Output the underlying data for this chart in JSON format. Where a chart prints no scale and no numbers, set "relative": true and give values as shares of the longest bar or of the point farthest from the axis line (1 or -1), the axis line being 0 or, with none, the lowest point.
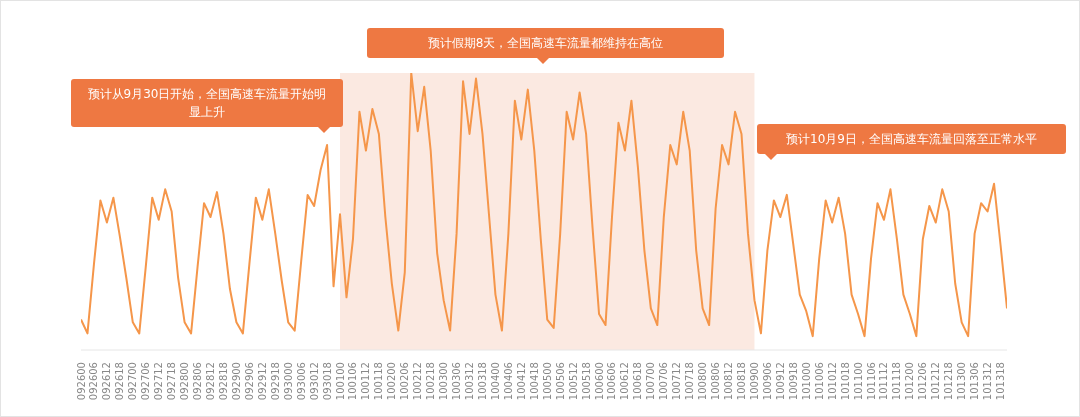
{
  "chart_data": {
    "type": "line",
    "relative": true,
    "tick_labels": "x",
    "color": "#f5964a",
    "categories": [
      "092600",
      null,
      "092606",
      null,
      "092612",
      null,
      "092618",
      null,
      "092700",
      null,
      "092706",
      null,
      "092712",
      null,
      "092718",
      null,
      "092800",
      null,
      "092806",
      null,
      "092812",
      null,
      "092818",
      null,
      "092900",
      null,
      "092906",
      null,
      "092912",
      null,
      "092918",
      null,
      "093000",
      null,
      "093006",
      null,
      "093012",
      null,
      "093018",
      null,
      "100100",
      null,
      "100106",
      null,
      "100112",
      null,
      "100118",
      null,
      "100200",
      null,
      "100206",
      null,
      "100212",
      null,
      "100218",
      null,
      "100300",
      null,
      "100306",
      null,
      "100312",
      null,
      "100318",
      null,
      "100400",
      null,
      "100406",
      null,
      "100412",
      null,
      "100418",
      null,
      "100500",
      null,
      "100506",
      null,
      "100512",
      null,
      "100518",
      null,
      "100600",
      null,
      "100606",
      null,
      "100612",
      null,
      "100618",
      null,
      "100700",
      null,
      "100706",
      null,
      "100712",
      null,
      "100718",
      null,
      "100800",
      null,
      "100806",
      null,
      "100812",
      null,
      "100818",
      null,
      "100900",
      null,
      "100906",
      null,
      "100912",
      null,
      "100918",
      null,
      "101000",
      null,
      "101006",
      null,
      "101012",
      null,
      "101018",
      null,
      "101100",
      null,
      "101106",
      null,
      "101112",
      null,
      "101118",
      null,
      "101200",
      null,
      "101206",
      null,
      "101212",
      null,
      "101218",
      null,
      "101300",
      null,
      "101306",
      null,
      "101312",
      null,
      "101318",
      null
    ],
    "values": [
      0.11,
      0.06,
      0.31,
      0.54,
      0.46,
      0.55,
      0.41,
      0.26,
      0.1,
      0.06,
      0.3,
      0.55,
      0.47,
      0.58,
      0.5,
      0.26,
      0.1,
      0.06,
      0.3,
      0.53,
      0.48,
      0.57,
      0.42,
      0.22,
      0.1,
      0.06,
      0.31,
      0.55,
      0.47,
      0.58,
      0.42,
      0.25,
      0.1,
      0.07,
      0.32,
      0.56,
      0.52,
      0.65,
      0.74,
      0.23,
      0.49,
      0.19,
      0.4,
      0.86,
      0.72,
      0.87,
      0.78,
      0.48,
      0.24,
      0.07,
      0.28,
      1.0,
      0.79,
      0.95,
      0.72,
      0.35,
      0.18,
      0.07,
      0.42,
      0.97,
      0.78,
      0.98,
      0.78,
      0.49,
      0.2,
      0.07,
      0.42,
      0.9,
      0.76,
      0.94,
      0.72,
      0.4,
      0.11,
      0.08,
      0.42,
      0.86,
      0.76,
      0.93,
      0.78,
      0.44,
      0.13,
      0.09,
      0.48,
      0.82,
      0.72,
      0.9,
      0.66,
      0.36,
      0.15,
      0.09,
      0.48,
      0.74,
      0.67,
      0.86,
      0.72,
      0.36,
      0.15,
      0.09,
      0.51,
      0.74,
      0.67,
      0.86,
      0.78,
      0.42,
      0.18,
      0.06,
      0.36,
      0.54,
      0.48,
      0.56,
      0.38,
      0.2,
      0.14,
      0.05,
      0.33,
      0.54,
      0.46,
      0.55,
      0.42,
      0.2,
      0.13,
      0.05,
      0.33,
      0.53,
      0.47,
      0.58,
      0.4,
      0.2,
      0.13,
      0.05,
      0.4,
      0.52,
      0.46,
      0.58,
      0.5,
      0.24,
      0.1,
      0.05,
      0.42,
      0.53,
      0.5,
      0.6,
      0.38,
      0.15
    ],
    "bands": [
      {
        "axis": "x",
        "from": "100100",
        "to": "100900",
        "color": "#fbe9e1"
      }
    ],
    "annotations": [
      "预计从9月30日开始，全国高速车流量开始明显上升",
      "预计假期8天，全国高速车流量都维持在高位",
      "预计10月9日，全国高速车流量回落至正常水平"
    ]
  }
}
